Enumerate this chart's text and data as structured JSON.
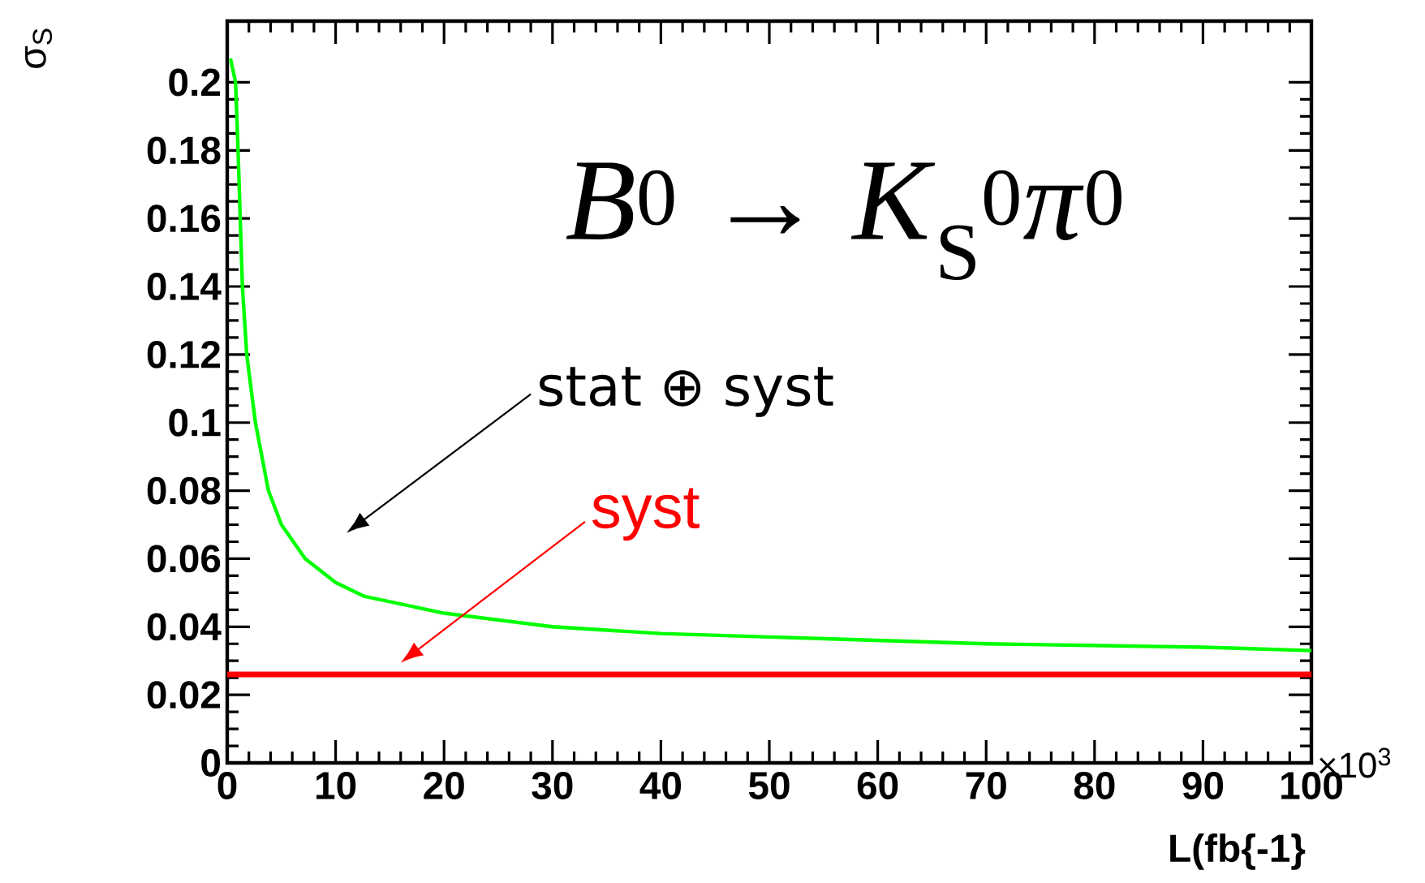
{
  "chart_data": {
    "type": "line",
    "xlabel": "L(fb{-1}",
    "ylabel": "σ$_{S}$",
    "xlim": [
      0,
      100
    ],
    "ylim": [
      0,
      0.218
    ],
    "xticks": [
      0,
      10,
      20,
      30,
      40,
      50,
      60,
      70,
      80,
      90,
      100
    ],
    "yticks": [
      0,
      0.02,
      0.04,
      0.06,
      0.08,
      0.1,
      0.12,
      0.14,
      0.16,
      0.18,
      0.2
    ],
    "series": [
      {
        "color": "#00ff00",
        "x": [
          0.3,
          0.77,
          1.0,
          1.2,
          1.4,
          1.8,
          2.6,
          3.8,
          5,
          7.2,
          10,
          12.6,
          20,
          30,
          40,
          50,
          60,
          70,
          80,
          90,
          100
        ],
        "values": [
          0.207,
          0.2,
          0.18,
          0.16,
          0.14,
          0.12,
          0.1,
          0.08,
          0.07,
          0.06,
          0.053,
          0.049,
          0.044,
          0.04,
          0.038,
          0.037,
          0.036,
          0.035,
          0.0345,
          0.034,
          0.033
        ]
      },
      {
        "color": "#ff0000",
        "x": [
          0,
          100
        ],
        "values": [
          0.026,
          0.026
        ]
      }
    ],
    "annotations": [
      "*B*$^{0}$ → *K*$_{S}$$^{0}$*π*$^{0}$",
      "stat  ⊕ syst",
      "syst",
      "×10$^{3}$"
    ],
    "grid": false,
    "marker": "none",
    "line_style": "solid"
  }
}
